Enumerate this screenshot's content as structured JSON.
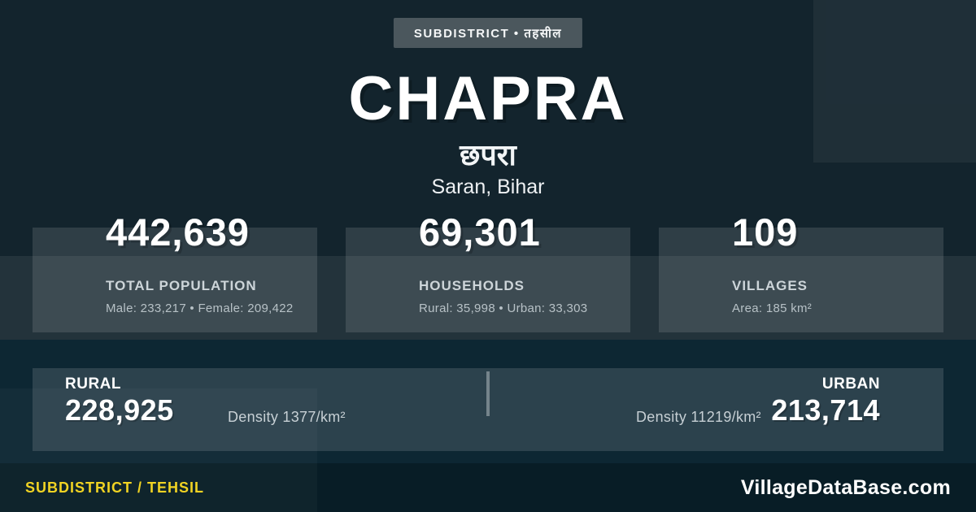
{
  "badge": {
    "label": "SUBDISTRICT • तहसील"
  },
  "header": {
    "title": "CHAPRA",
    "local_name": "छपरा",
    "region": "Saran, Bihar"
  },
  "stats": [
    {
      "value": "442,639",
      "label": "TOTAL POPULATION",
      "detail": "Male: 233,217 • Female: 209,422"
    },
    {
      "value": "69,301",
      "label": "HOUSEHOLDS",
      "detail": "Rural: 35,998 • Urban: 33,303"
    },
    {
      "value": "109",
      "label": "VILLAGES",
      "detail": "Area: 185 km²"
    }
  ],
  "split": {
    "rural": {
      "label": "RURAL",
      "value": "228,925",
      "density": "Density 1377/km²"
    },
    "urban": {
      "label": "URBAN",
      "value": "213,714",
      "density": "Density 11219/km²"
    }
  },
  "footer": {
    "type_label": "SUBDISTRICT / TEHSIL",
    "brand": "VillageDataBase.com"
  },
  "colors": {
    "background_top": "#13242d",
    "background_bottom": "#0d2733",
    "badge_background": "#4b575d",
    "card_overlay": "rgba(255,255,255,0.12)",
    "footer_background": "#081d26",
    "accent_yellow": "#f0d21c"
  }
}
